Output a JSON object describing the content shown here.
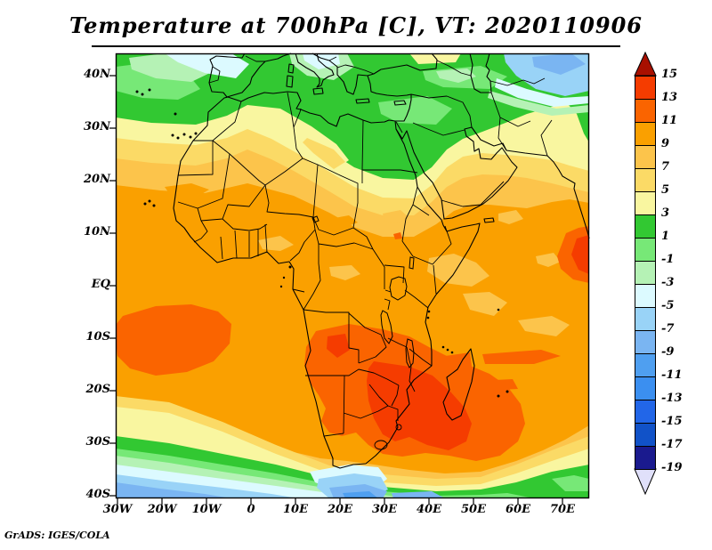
{
  "title": "Temperature at 700hPa [C], VT: 2020110906",
  "credit": "GrADS: IGES/COLA",
  "map": {
    "y_axis_labels": [
      "40N",
      "30N",
      "20N",
      "10N",
      "EQ",
      "10S",
      "20S",
      "30S",
      "40S"
    ],
    "x_axis_labels": [
      "30W",
      "20W",
      "10W",
      "0",
      "10E",
      "20E",
      "30E",
      "40E",
      "50E",
      "60E",
      "70E"
    ]
  },
  "colorbar": {
    "tick_labels": [
      "15",
      "13",
      "11",
      "9",
      "7",
      "5",
      "3",
      "1",
      "-1",
      "-3",
      "-5",
      "-7",
      "-9",
      "-11",
      "-13",
      "-15",
      "-17",
      "-19"
    ],
    "cell_colors": [
      "#F53C00",
      "#FA6400",
      "#FAA000",
      "#FCC44B",
      "#FBDA66",
      "#F9F6A0",
      "#32C832",
      "#77E877",
      "#B5F2B5",
      "#DCFAFF",
      "#99D3F7",
      "#7AB5F2",
      "#4F9FF0",
      "#3B8FF0",
      "#2266E8",
      "#1152C8",
      "#1A1A8E"
    ],
    "arrow_up_color": "#A81000",
    "arrow_down_color": "#E0E0FA"
  },
  "chart_data": {
    "type": "heatmap",
    "title": "Temperature at 700hPa [C], VT: 2020110906",
    "variable": "Temperature",
    "level": "700hPa",
    "units": "C",
    "valid_time": "2020110906",
    "projection": "latlon",
    "lon_range": [
      -30,
      76
    ],
    "lat_range": [
      -40,
      44
    ],
    "xticks": [
      "30W",
      "20W",
      "10W",
      "0",
      "10E",
      "20E",
      "30E",
      "40E",
      "50E",
      "60E",
      "70E"
    ],
    "yticks": [
      "40N",
      "30N",
      "20N",
      "10N",
      "EQ",
      "10S",
      "20S",
      "30S",
      "40S"
    ],
    "contour_interval": 2,
    "levels": [
      -19,
      -17,
      -15,
      -13,
      -11,
      -9,
      -7,
      -5,
      -3,
      -1,
      1,
      3,
      5,
      7,
      9,
      11,
      13,
      15
    ],
    "palette_low_to_high": [
      "#E0E0FA",
      "#1A1A8E",
      "#1152C8",
      "#2266E8",
      "#3B8FF0",
      "#4F9FF0",
      "#7AB5F2",
      "#99D3F7",
      "#DCFAFF",
      "#B5F2B5",
      "#77E877",
      "#32C832",
      "#F9F6A0",
      "#FBDA66",
      "#FCC44B",
      "#FAA000",
      "#FA6400",
      "#F53C00",
      "#A81000"
    ],
    "legend_position": "right vertical colorbar with over/under arrows",
    "grid": false,
    "features": [
      {
        "region": "Mediterranean and North African coast (30N-38N)",
        "approx_temp_c": "1 to 3"
      },
      {
        "region": "Libya/Egypt green wedge extending south to ~21N",
        "approx_temp_c": "1 to 3"
      },
      {
        "region": "NW Atlantic corner near Iberia (40N)",
        "approx_temp_c": "-3 to -1"
      },
      {
        "region": "NE corner, Caspian region (40N+)",
        "approx_temp_c": "-7 to -5"
      },
      {
        "region": "Sahara (20N-30N)",
        "approx_temp_c": "3 to 9"
      },
      {
        "region": "Sahel and tropics (15N-10S)",
        "approx_temp_c": "9 to 11"
      },
      {
        "region": "SW Atlantic blob (5S-20S, 28W-5W)",
        "approx_temp_c": "11 to 13"
      },
      {
        "region": "Angola/Namibia/Botswana/Zimbabwe/NE South Africa",
        "approx_temp_c": "13 to 15"
      },
      {
        "region": "SW Indian Ocean southeast of South Africa",
        "approx_temp_c": "13 to 15"
      },
      {
        "region": "Arabian Sea at eastern map edge (8N-22N)",
        "approx_temp_c": "11 to 15"
      },
      {
        "region": "Southern Ocean band (33S-40S)",
        "approx_temp_c": "1 down to -9"
      },
      {
        "region": "Ocean south of Cape of Good Hope",
        "approx_temp_c": "-5 to -9"
      }
    ]
  }
}
